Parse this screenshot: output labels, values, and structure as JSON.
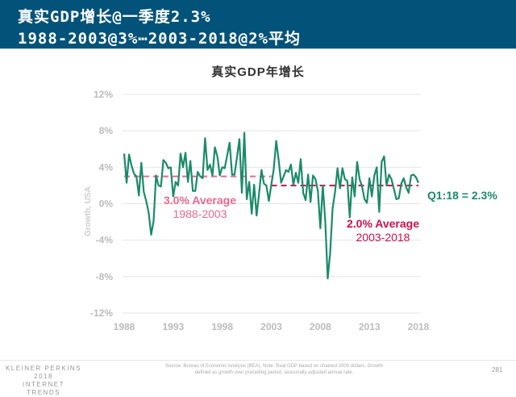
{
  "header": {
    "title_line1": "真实GDP增长@一季度2.3%",
    "title_line2": "1988-2003@3%⋯2003-2018@2%平均"
  },
  "chart_data": {
    "type": "line",
    "title": "真实GDP年增长",
    "ylabel": "Growth, USA",
    "xlabel": "",
    "ylim": [
      -12,
      12
    ],
    "xlim": [
      1988,
      2018
    ],
    "yticks": [
      "12%",
      "8%",
      "4%",
      "0%",
      "-4%",
      "-8%",
      "-12%"
    ],
    "ytick_values": [
      12,
      8,
      4,
      0,
      -4,
      -8,
      -12
    ],
    "xticks": [
      "1988",
      "1993",
      "1998",
      "2003",
      "2008",
      "2013",
      "2018"
    ],
    "xtick_values": [
      1988,
      1993,
      1998,
      2003,
      2008,
      2013,
      2018
    ],
    "grid": true,
    "series": [
      {
        "start": "1988 Q1",
        "frequency": "quarterly",
        "color": "#1a8a6a",
        "values": [
          5.5,
          2.3,
          5.4,
          4.2,
          3.3,
          3.0,
          0.9,
          4.5,
          1.3,
          0.3,
          -1.0,
          -3.4,
          -1.9,
          3.1,
          2.0,
          1.9,
          4.8,
          4.5,
          3.9,
          4.0,
          0.8,
          2.4,
          2.0,
          5.5,
          4.0,
          5.6,
          2.4,
          4.7,
          1.4,
          1.4,
          3.5,
          3.0,
          2.8,
          7.2,
          3.7,
          4.3,
          3.1,
          6.2,
          5.2,
          3.1,
          4.0,
          3.9,
          5.3,
          6.7,
          3.2,
          3.2,
          5.1,
          7.1,
          1.2,
          7.8,
          0.5,
          2.4,
          -1.1,
          2.1,
          -1.3,
          1.1,
          3.7,
          2.2,
          2.0,
          0.3,
          2.1,
          3.8,
          6.9,
          4.8,
          2.3,
          3.0,
          3.7,
          3.5,
          4.3,
          2.1,
          3.4,
          2.3,
          4.9,
          1.2,
          0.4,
          3.2,
          0.2,
          3.1,
          2.7,
          1.4,
          -2.7,
          2.0,
          -1.9,
          -8.2,
          -5.4,
          -0.5,
          1.3,
          3.9,
          1.7,
          3.9,
          2.7,
          2.5,
          -1.5,
          2.9,
          0.8,
          4.6,
          2.7,
          1.9,
          0.5,
          0.1,
          2.8,
          0.8,
          3.1,
          4.0,
          -0.9,
          4.6,
          5.2,
          2.0,
          3.2,
          2.7,
          1.6,
          0.5,
          0.6,
          2.2,
          2.8,
          1.8,
          1.2,
          3.1,
          3.2,
          2.9,
          2.3
        ]
      }
    ],
    "averages": [
      {
        "value": 3.0,
        "from": 1988,
        "to": 2003,
        "label": "3.0% Average",
        "sublabel": "1988-2003",
        "color": "#e8688e"
      },
      {
        "value": 2.0,
        "from": 2003,
        "to": 2018,
        "label": "2.0% Average",
        "sublabel": "2003-2018",
        "color": "#c8104f"
      }
    ],
    "annotation": {
      "text": "Q1:18 = 2.3%",
      "color": "#1a8a6a"
    }
  },
  "footer": {
    "brand_line1": "KLEINER PERKINS",
    "brand_line2": "2018",
    "brand_line3": "INTERNET TRENDS",
    "source": "Source: Bureau of Economic Analysis (BEA).  Note: Real GDP based on chained 2009 dollars. Growth defined as growth over preceding period, seasonally adjusted annual rate.",
    "page": "281"
  }
}
